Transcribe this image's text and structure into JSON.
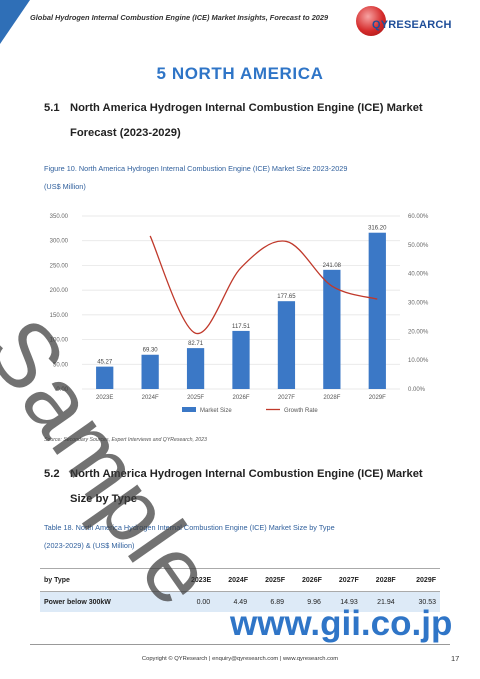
{
  "header": {
    "title": "Global Hydrogen Internal Combustion Engine (ICE) Market Insights, Forecast to 2029",
    "logo_text": "QYRESEARCH",
    "logo_brand": "QY"
  },
  "chapter": {
    "title": "5 NORTH AMERICA"
  },
  "section_1": {
    "number": "5.1",
    "title_line1": "North America Hydrogen Internal Combustion Engine (ICE) Market",
    "title_line2": "Forecast (2023-2029)"
  },
  "figure": {
    "caption_line1": "Figure 10.   North America Hydrogen Internal Combustion Engine (ICE) Market Size 2023-2029",
    "caption_line2": "(US$ Million)"
  },
  "chart_data": {
    "type": "bar",
    "categories": [
      "2023E",
      "2024F",
      "2025F",
      "2026F",
      "2027F",
      "2028F",
      "2029F"
    ],
    "series": [
      {
        "name": "Market Size",
        "type": "bar",
        "values": [
          45.27,
          69.3,
          82.71,
          117.51,
          177.65,
          241.08,
          316.2
        ],
        "color": "#3b78c6"
      },
      {
        "name": "Growth Rate",
        "type": "line",
        "axis": "right",
        "values": [
          null,
          0.5308,
          0.1935,
          0.4208,
          0.5118,
          0.3571,
          0.3116
        ],
        "color": "#c0392b"
      }
    ],
    "data_labels": [
      "45.27",
      "69.30",
      "82.71",
      "117.51",
      "177.65",
      "241.08",
      "316.20"
    ],
    "y_ticks": [
      "0.00",
      "50.00",
      "100.00",
      "150.00",
      "200.00",
      "250.00",
      "300.00",
      "350.00"
    ],
    "y2_ticks": [
      "0.00%",
      "10.00%",
      "20.00%",
      "30.00%",
      "40.00%",
      "50.00%",
      "60.00%"
    ],
    "ylim": [
      0,
      350
    ],
    "y2lim": [
      0,
      0.6
    ],
    "legend": [
      "Market Size",
      "Growth Rate"
    ],
    "legend_position": "bottom",
    "grid": true
  },
  "source": "Source: Secondary Sources, Expert Interviews and QYResearch, 2023",
  "section_2": {
    "number": "5.2",
    "title_line1": "North America Hydrogen Internal Combustion Engine (ICE) Market",
    "title_line2": "Size by Type"
  },
  "table": {
    "caption_line1": "Table 18.   North America Hydrogen Internal Combustion Engine (ICE) Market Size by Type",
    "caption_line2": "(2023-2029) & (US$ Million)",
    "headers": [
      "by Type",
      "2023E",
      "2024F",
      "2025F",
      "2026F",
      "2027F",
      "2028F",
      "2029F"
    ],
    "rows": [
      [
        "Power below 300kW",
        "0.00",
        "4.49",
        "6.89",
        "9.96",
        "14.93",
        "21.94",
        "30.53"
      ]
    ]
  },
  "watermark": {
    "text": "Sample",
    "site": "www.gii.co.jp"
  },
  "footer": {
    "text": "Copyright © QYResearch | enquiry@qyresearch.com | www.qyresearch.com",
    "page": "17"
  }
}
